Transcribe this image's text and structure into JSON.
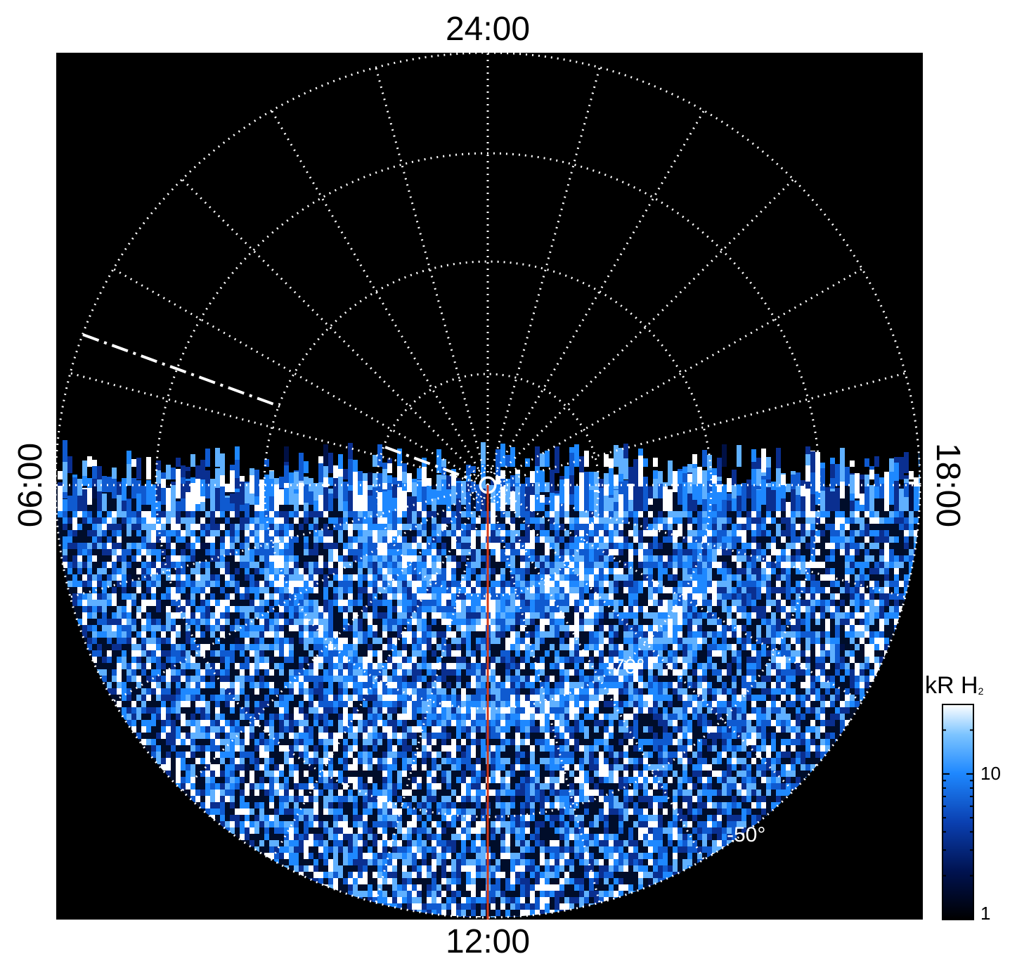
{
  "axes": {
    "top_label": "24:00",
    "bottom_label": "12:00",
    "left_label": "06:00",
    "right_label": "18:00"
  },
  "latitude_labels": [
    "-70°",
    "-50°"
  ],
  "colorbar": {
    "title": "kR H",
    "title_sub": "2",
    "ticks": [
      "10",
      "1"
    ],
    "scale": "log",
    "range": [
      1,
      30
    ]
  },
  "colors": {
    "background": "#000000",
    "grid": "#ffffff",
    "meridian_line": "#d43a1a",
    "emission_low": "#00104a",
    "emission_mid": "#1e88ff",
    "emission_high": "#ffffff"
  }
}
